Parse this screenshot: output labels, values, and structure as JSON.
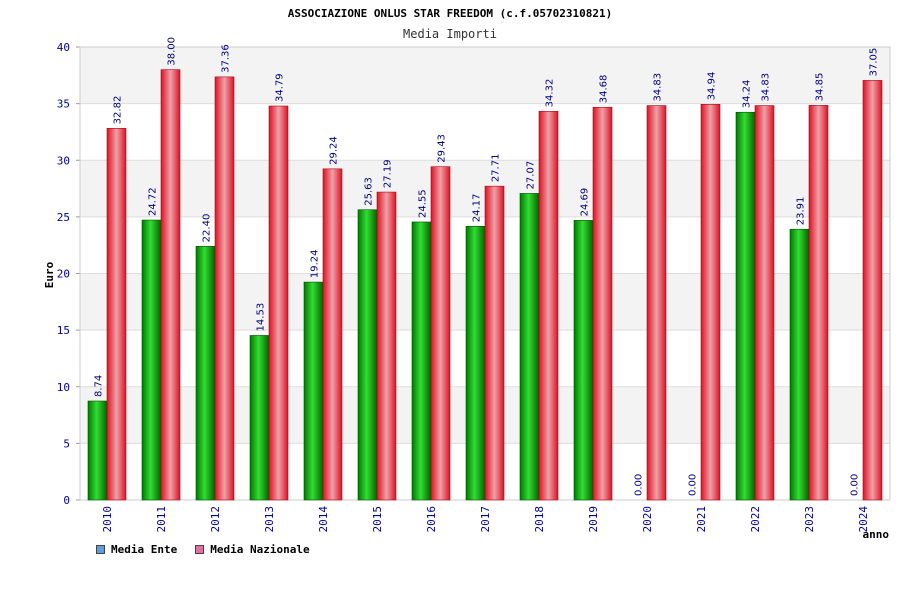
{
  "chart_data": {
    "type": "bar",
    "title": "ASSOCIAZIONE ONLUS STAR FREEDOM (c.f.05702310821)",
    "subtitle": "Media Importi",
    "xlabel": "anno",
    "ylabel": "Euro",
    "ylim": [
      0,
      40
    ],
    "yticks": [
      0,
      5,
      10,
      15,
      20,
      25,
      30,
      35,
      40
    ],
    "grid": true,
    "categories": [
      "2010",
      "2011",
      "2012",
      "2013",
      "2014",
      "2015",
      "2016",
      "2017",
      "2018",
      "2019",
      "2020",
      "2021",
      "2022",
      "2023",
      "2024"
    ],
    "series": [
      {
        "name": "Media Ente",
        "color": "#00aa00",
        "legend_color": "#5aa0e0",
        "values": [
          8.74,
          24.72,
          22.4,
          14.53,
          19.24,
          25.63,
          24.55,
          24.17,
          27.07,
          24.69,
          0.0,
          0.0,
          34.24,
          23.91,
          0.0
        ],
        "labels": [
          "8.74",
          "24.72",
          "22.40",
          "14.53",
          "19.24",
          "25.63",
          "24.55",
          "24.17",
          "27.07",
          "24.69",
          "0.00",
          "0.00",
          "34.24",
          "23.91",
          "0.00"
        ]
      },
      {
        "name": "Media Nazionale",
        "color": "#ee2233",
        "legend_color": "#e070a0",
        "values": [
          32.82,
          38.0,
          37.36,
          34.79,
          29.24,
          27.19,
          29.43,
          27.71,
          34.32,
          34.68,
          34.83,
          34.94,
          34.83,
          34.85,
          37.05
        ],
        "labels": [
          "32.82",
          "38.00",
          "37.36",
          "34.79",
          "29.24",
          "27.19",
          "29.43",
          "27.71",
          "34.32",
          "34.68",
          "34.83",
          "34.94",
          "34.83",
          "34.85",
          "37.05"
        ]
      }
    ],
    "legend_position": "bottom-left"
  }
}
